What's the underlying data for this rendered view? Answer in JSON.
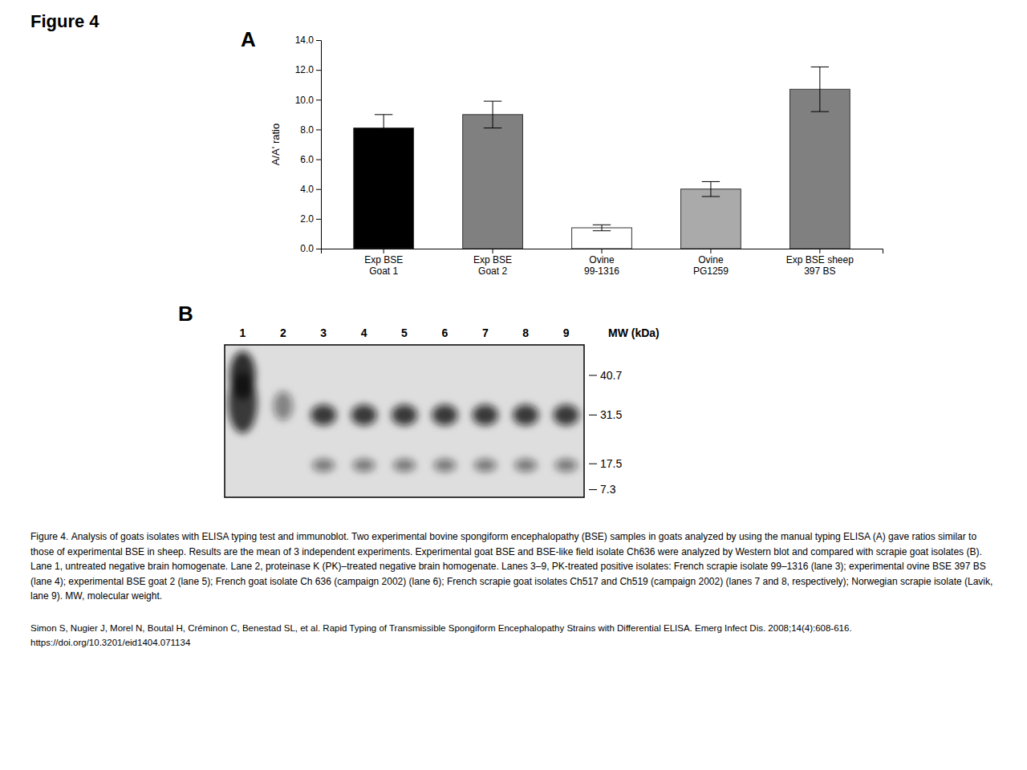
{
  "chart_data": {
    "type": "bar",
    "title": "Figure 4",
    "categories": [
      "Exp BSE\nGoat 1",
      "Exp BSE\nGoat 2",
      "Ovine\n99-1316",
      "Ovine\nPG1259",
      "Exp BSE sheep\n397 BS"
    ],
    "values": [
      8.1,
      9.0,
      1.4,
      4.0,
      10.7
    ],
    "errors": [
      0.9,
      0.9,
      0.2,
      0.5,
      1.5
    ],
    "colors": [
      "#000000",
      "#808080",
      "#ffffff",
      "#aaaaaa",
      "#808080"
    ],
    "ylabel": "A/A' ratio",
    "ylim": [
      0,
      14.0
    ],
    "yticks": [
      {
        "value": 0,
        "label": "0.0"
      },
      {
        "value": 2,
        "label": "2.0"
      },
      {
        "value": 4,
        "label": "4.0"
      },
      {
        "value": 6,
        "label": "6.0"
      },
      {
        "value": 8,
        "label": "8.0"
      },
      {
        "value": 10,
        "label": "10.0"
      },
      {
        "value": 12,
        "label": "12.0"
      },
      {
        "value": 14,
        "label": "14.0"
      }
    ],
    "annotations": {
      "panel_labels": [
        "A",
        "B"
      ],
      "blot_lane_labels": [
        "1",
        "2",
        "3",
        "4",
        "5",
        "6",
        "7",
        "8",
        "9"
      ],
      "mw_label": "MW (kDa)",
      "mw_values": [
        "40.7",
        "31.5",
        "17.5",
        "7.3"
      ],
      "caption": "Figure 4. Analysis of goats isolates with ELISA typing test and immunoblot. Two experimental bovine spongiform encephalopathy (BSE) samples in goats analyzed by using the manual typing ELISA (A) gave ratios similar to those of experimental BSE in sheep. Results are the mean of 3 independent experiments. Experimental goat BSE and BSE-like field isolate Ch636 were analyzed by Western blot and compared with scrapie goat isolates (B). Lane 1, untreated negative brain homogenate. Lane 2, proteinase K (PK)–treated negative brain homogenate. Lanes 3–9, PK-treated positive isolates: French scrapie isolate 99–1316 (lane 3); experimental ovine BSE 397 BS (lane 4); experimental BSE goat 2 (lane 5); French goat isolate Ch 636 (campaign 2002) (lane 6); French scrapie goat isolates Ch517 and Ch519 (campaign 2002) (lanes 7 and 8, respectively); Norwegian scrapie isolate (Lavik, lane 9). MW, molecular weight.",
      "citation": "Simon S, Nugier J, Morel N, Boutal H, Créminon C, Benestad SL, et al. Rapid Typing of Transmissible Spongiform Encephalopathy Strains with Differential ELISA. Emerg Infect Dis. 2008;14(4):608-616. https://doi.org/10.3201/eid1404.071134"
    }
  }
}
